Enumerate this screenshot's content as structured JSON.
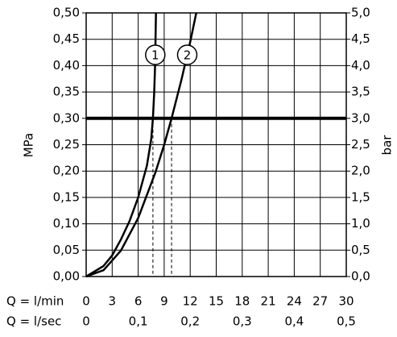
{
  "chart_data": {
    "type": "line",
    "y_label": "MPa",
    "y2_label": "bar",
    "x_label": "Q = l/min",
    "x2_label": "Q = l/sec",
    "xlim": [
      0,
      30
    ],
    "xticks": [
      0,
      3,
      6,
      9,
      12,
      15,
      18,
      21,
      24,
      27,
      30
    ],
    "x2lim": [
      0,
      0.5
    ],
    "x2ticks": [
      0,
      {
        "value": 0.1,
        "label": "0,1"
      },
      {
        "value": 0.2,
        "label": "0,2"
      },
      {
        "value": 0.3,
        "label": "0,3"
      },
      {
        "value": 0.4,
        "label": "0,4"
      },
      {
        "value": 0.5,
        "label": "0,5"
      }
    ],
    "ylim": [
      0,
      0.5
    ],
    "yticks": [
      {
        "value": 0,
        "label": "0,00"
      },
      {
        "value": 0.05,
        "label": "0,05"
      },
      {
        "value": 0.1,
        "label": "0,10"
      },
      {
        "value": 0.15,
        "label": "0,15"
      },
      {
        "value": 0.2,
        "label": "0,20"
      },
      {
        "value": 0.25,
        "label": "0,25"
      },
      {
        "value": 0.3,
        "label": "0,30"
      },
      {
        "value": 0.35,
        "label": "0,35"
      },
      {
        "value": 0.4,
        "label": "0,40"
      },
      {
        "value": 0.45,
        "label": "0,45"
      },
      {
        "value": 0.5,
        "label": "0,50"
      }
    ],
    "y2lim": [
      0,
      5
    ],
    "y2ticks": [
      {
        "value": 0,
        "label": "0,0"
      },
      {
        "value": 0.5,
        "label": "0,5"
      },
      {
        "value": 1,
        "label": "1,0"
      },
      {
        "value": 1.5,
        "label": "1,5"
      },
      {
        "value": 2,
        "label": "2,0"
      },
      {
        "value": 2.5,
        "label": "2,5"
      },
      {
        "value": 3,
        "label": "3,0"
      },
      {
        "value": 3.5,
        "label": "3,5"
      },
      {
        "value": 4,
        "label": "4,0"
      },
      {
        "value": 4.5,
        "label": "4,5"
      },
      {
        "value": 5,
        "label": "5,0"
      }
    ],
    "grid": true,
    "hline": 0.3,
    "reference_x": [
      7.7,
      9.85
    ],
    "series": [
      {
        "name": "1",
        "color": "#000000",
        "x": [
          0,
          2,
          3,
          4,
          5,
          6,
          7,
          7.5,
          7.7,
          7.85,
          7.95,
          8.0,
          8.05
        ],
        "values": [
          0,
          0.02,
          0.04,
          0.07,
          0.105,
          0.15,
          0.21,
          0.26,
          0.3,
          0.35,
          0.4,
          0.45,
          0.5
        ]
      },
      {
        "name": "2",
        "color": "#000000",
        "x": [
          0,
          2,
          4,
          6,
          8,
          9,
          9.85,
          11,
          12,
          12.7
        ],
        "values": [
          0,
          0.012,
          0.049,
          0.111,
          0.198,
          0.25,
          0.3,
          0.374,
          0.445,
          0.5
        ]
      }
    ]
  }
}
